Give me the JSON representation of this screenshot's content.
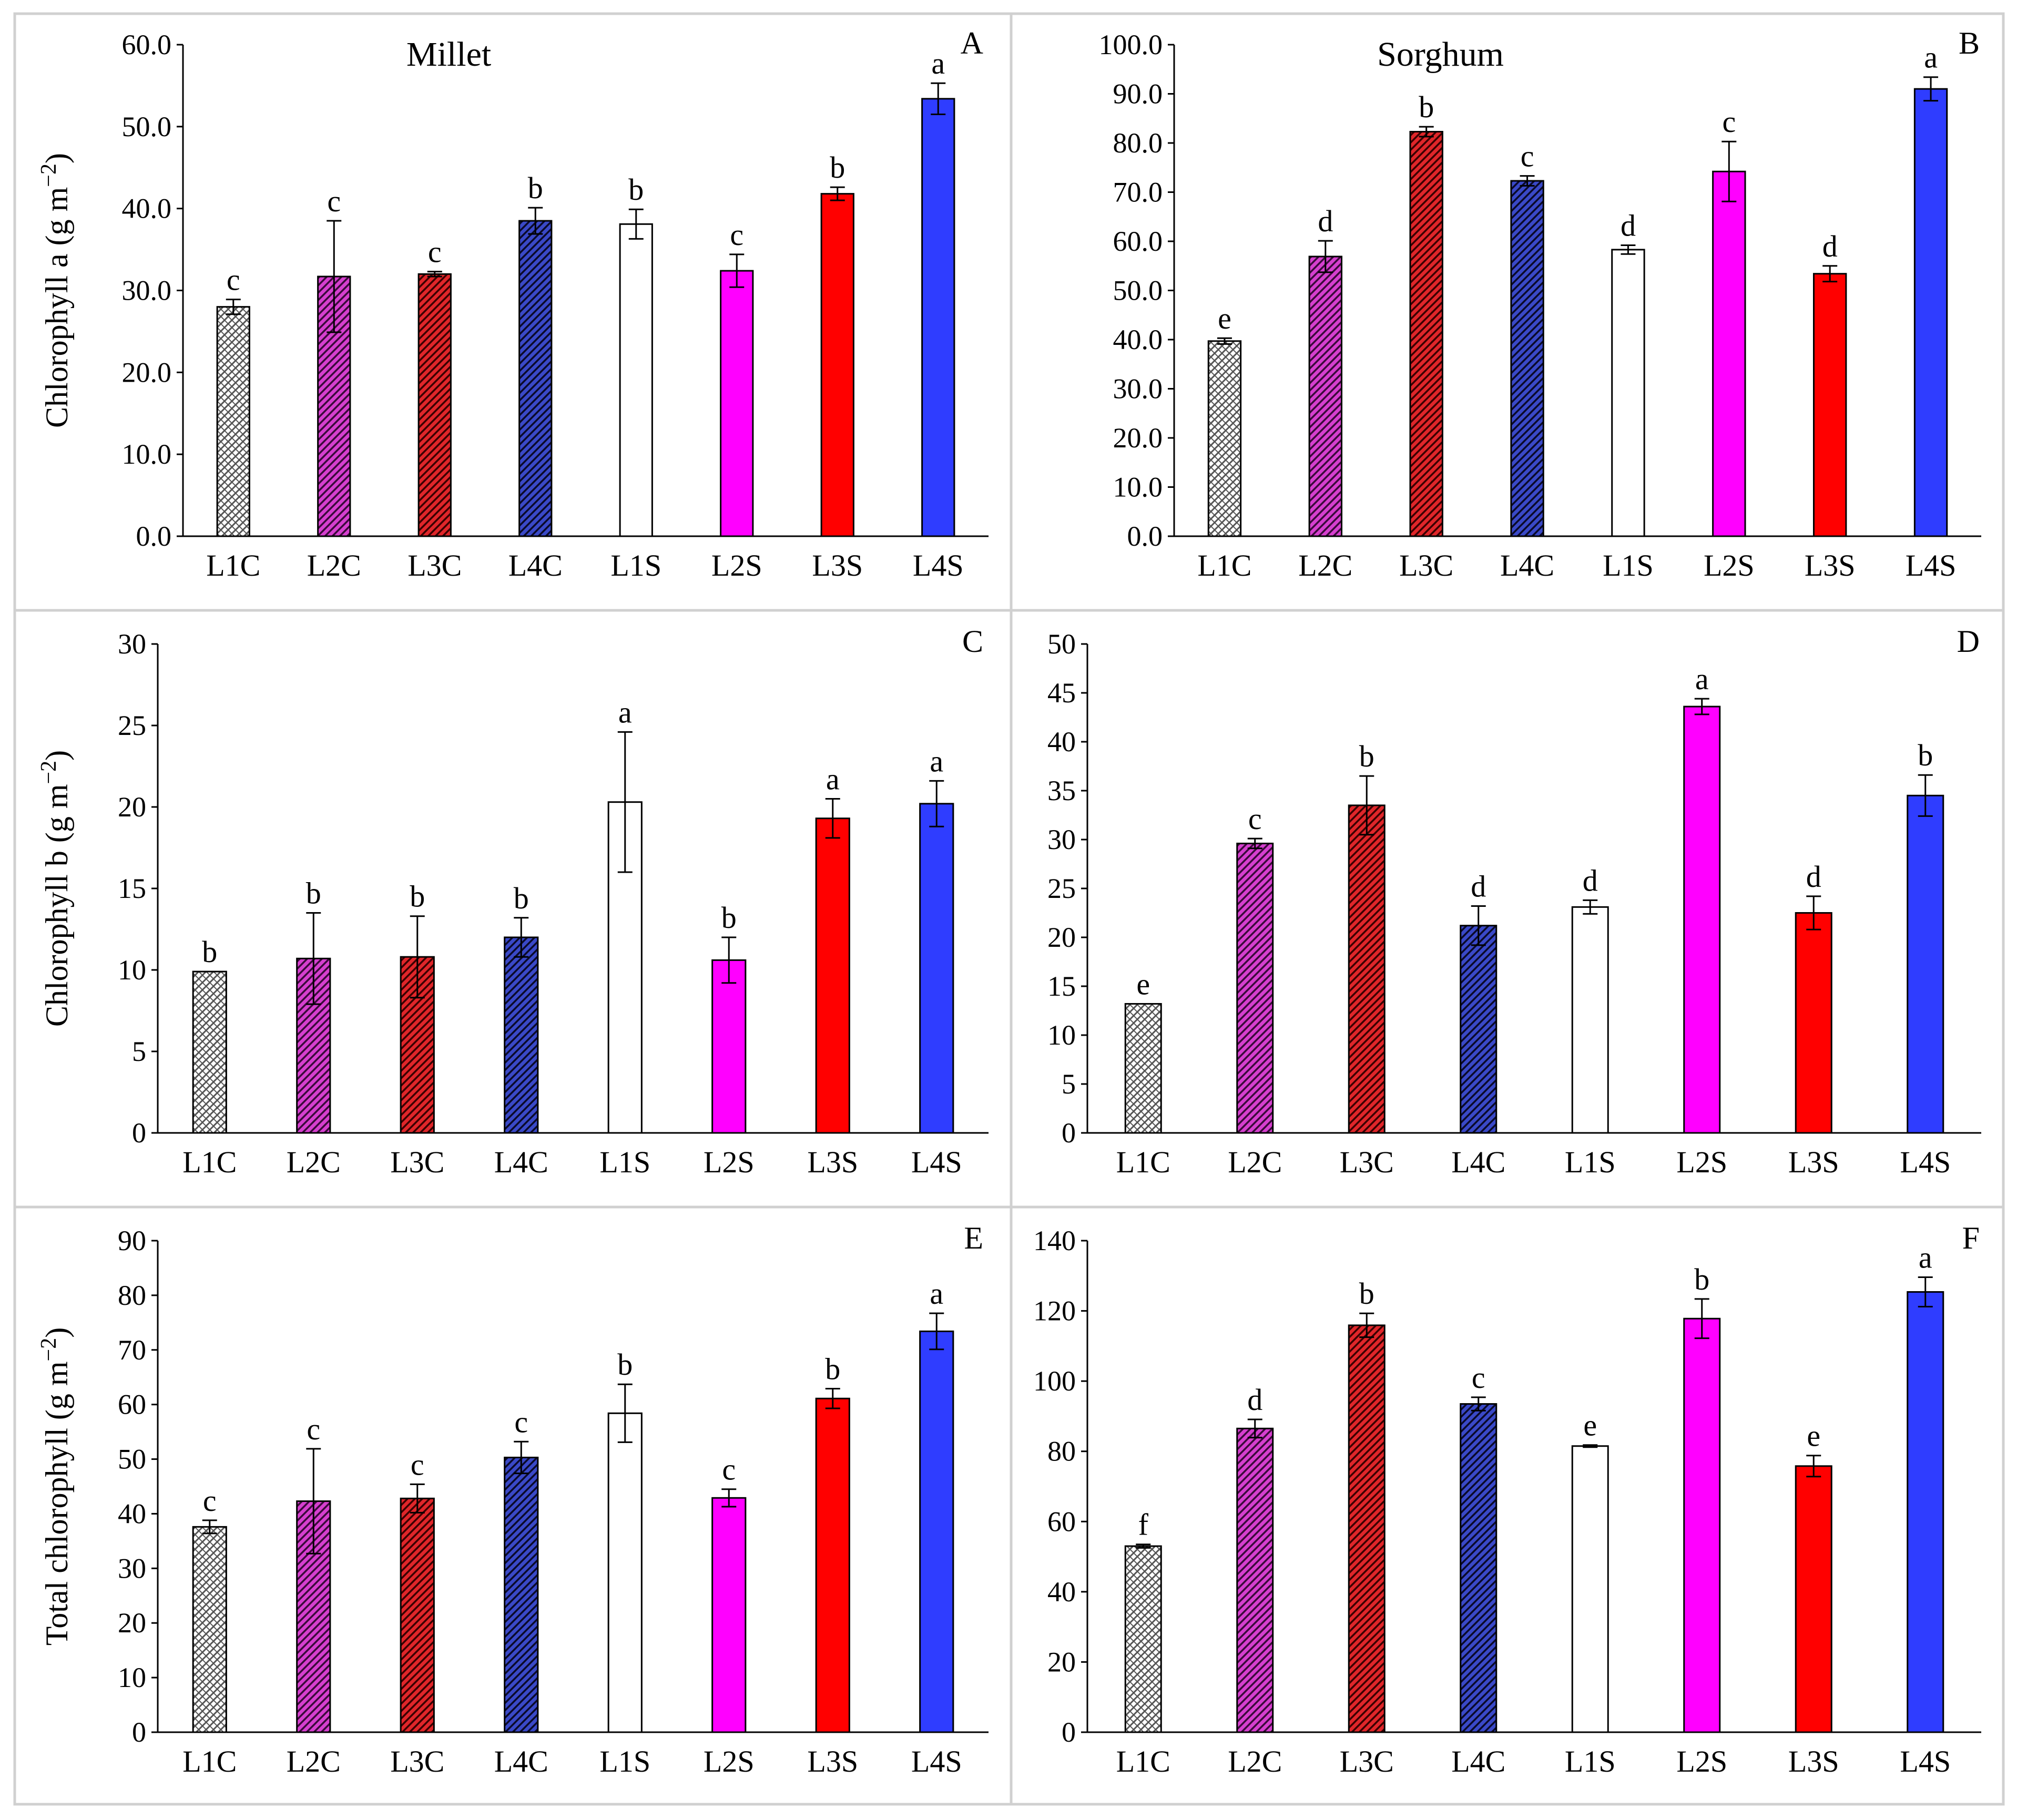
{
  "figure": {
    "categories": [
      "L1C",
      "L2C",
      "L3C",
      "L4C",
      "L1S",
      "L2S",
      "L3S",
      "L4S"
    ],
    "series_styles": [
      {
        "name": "L1C",
        "fill": "#ffffff",
        "hatch": "#555555",
        "pattern": "cross"
      },
      {
        "name": "L2C",
        "fill": "#d63fcf",
        "hatch": "#3a0a3a",
        "pattern": "diag"
      },
      {
        "name": "L3C",
        "fill": "#e0262a",
        "hatch": "#3a0000",
        "pattern": "diag"
      },
      {
        "name": "L4C",
        "fill": "#3a49c8",
        "hatch": "#0a0a2a",
        "pattern": "diag"
      },
      {
        "name": "L1S",
        "fill": "#ffffff",
        "hatch": "",
        "pattern": "none"
      },
      {
        "name": "L2S",
        "fill": "#ff00ff",
        "hatch": "",
        "pattern": "none"
      },
      {
        "name": "L3S",
        "fill": "#ff0000",
        "hatch": "",
        "pattern": "none"
      },
      {
        "name": "L4S",
        "fill": "#2f3dff",
        "hatch": "",
        "pattern": "none"
      }
    ]
  },
  "chart_data": [
    {
      "type": "bar",
      "panel": "A",
      "title": "Millet",
      "ylabel_main": "Chlorophyll a (g m",
      "ylabel_sup": "−2",
      "ylabel_end": ")",
      "categories": [
        "L1C",
        "L2C",
        "L3C",
        "L4C",
        "L1S",
        "L2S",
        "L3S",
        "L4S"
      ],
      "values": [
        28.0,
        31.7,
        32.0,
        38.5,
        38.1,
        32.4,
        41.8,
        53.4
      ],
      "errors": [
        0.9,
        6.8,
        0.3,
        1.6,
        1.8,
        2.0,
        0.8,
        1.9
      ],
      "letters": [
        "c",
        "c",
        "c",
        "b",
        "b",
        "c",
        "b",
        "a"
      ],
      "ylim": [
        0,
        60
      ],
      "ticks": [
        0,
        10,
        20,
        30,
        40,
        50,
        60
      ],
      "tick_labels": [
        "0.0",
        "10.0",
        "20.0",
        "30.0",
        "40.0",
        "50.0",
        "60.0"
      ]
    },
    {
      "type": "bar",
      "panel": "B",
      "title": "Sorghum",
      "ylabel_main": "",
      "ylabel_sup": "",
      "ylabel_end": "",
      "categories": [
        "L1C",
        "L2C",
        "L3C",
        "L4C",
        "L1S",
        "L2S",
        "L3S",
        "L4S"
      ],
      "values": [
        39.7,
        56.9,
        82.3,
        72.3,
        58.3,
        74.2,
        53.4,
        91.0
      ],
      "errors": [
        0.6,
        3.2,
        1.0,
        1.0,
        0.9,
        6.1,
        1.6,
        2.4
      ],
      "letters": [
        "e",
        "d",
        "b",
        "c",
        "d",
        "c",
        "d",
        "a"
      ],
      "ylim": [
        0,
        100
      ],
      "ticks": [
        0,
        10,
        20,
        30,
        40,
        50,
        60,
        70,
        80,
        90,
        100
      ],
      "tick_labels": [
        "0.0",
        "10.0",
        "20.0",
        "30.0",
        "40.0",
        "50.0",
        "60.0",
        "70.0",
        "80.0",
        "90.0",
        "100.0"
      ]
    },
    {
      "type": "bar",
      "panel": "C",
      "title": "",
      "ylabel_main": "Chlorophyll b (g m",
      "ylabel_sup": "−2",
      "ylabel_end": ")",
      "categories": [
        "L1C",
        "L2C",
        "L3C",
        "L4C",
        "L1S",
        "L2S",
        "L3S",
        "L4S"
      ],
      "values": [
        9.9,
        10.7,
        10.8,
        12.0,
        20.3,
        10.6,
        19.3,
        20.2
      ],
      "errors": [
        0.0,
        2.8,
        2.5,
        1.2,
        4.3,
        1.4,
        1.2,
        1.4
      ],
      "letters": [
        "b",
        "b",
        "b",
        "b",
        "a",
        "b",
        "a",
        "a"
      ],
      "ylim": [
        0,
        30
      ],
      "ticks": [
        0,
        5,
        10,
        15,
        20,
        25,
        30
      ],
      "tick_labels": [
        "0",
        "5",
        "10",
        "15",
        "20",
        "25",
        "30"
      ]
    },
    {
      "type": "bar",
      "panel": "D",
      "title": "",
      "ylabel_main": "",
      "ylabel_sup": "",
      "ylabel_end": "",
      "categories": [
        "L1C",
        "L2C",
        "L3C",
        "L4C",
        "L1S",
        "L2S",
        "L3S",
        "L4S"
      ],
      "values": [
        13.2,
        29.6,
        33.5,
        21.2,
        23.1,
        43.6,
        22.5,
        34.5
      ],
      "errors": [
        0.0,
        0.5,
        3.0,
        2.0,
        0.7,
        0.8,
        1.7,
        2.1
      ],
      "letters": [
        "e",
        "c",
        "b",
        "d",
        "d",
        "a",
        "d",
        "b"
      ],
      "ylim": [
        0,
        50
      ],
      "ticks": [
        0,
        5,
        10,
        15,
        20,
        25,
        30,
        35,
        40,
        45,
        50
      ],
      "tick_labels": [
        "0",
        "5",
        "10",
        "15",
        "20",
        "25",
        "30",
        "35",
        "40",
        "45",
        "50"
      ]
    },
    {
      "type": "bar",
      "panel": "E",
      "title": "",
      "ylabel_main": "Total chlorophyll (g m",
      "ylabel_sup": "−2",
      "ylabel_end": ")",
      "categories": [
        "L1C",
        "L2C",
        "L3C",
        "L4C",
        "L1S",
        "L2S",
        "L3S",
        "L4S"
      ],
      "values": [
        37.6,
        42.3,
        42.8,
        50.3,
        58.4,
        42.9,
        61.1,
        73.4
      ],
      "errors": [
        1.2,
        9.6,
        2.6,
        2.9,
        5.3,
        1.6,
        1.8,
        3.3
      ],
      "letters": [
        "c",
        "c",
        "c",
        "c",
        "b",
        "c",
        "b",
        "a"
      ],
      "ylim": [
        0,
        90
      ],
      "ticks": [
        0,
        10,
        20,
        30,
        40,
        50,
        60,
        70,
        80,
        90
      ],
      "tick_labels": [
        "0",
        "10",
        "20",
        "30",
        "40",
        "50",
        "60",
        "70",
        "80",
        "90"
      ]
    },
    {
      "type": "bar",
      "panel": "F",
      "title": "",
      "ylabel_main": "",
      "ylabel_sup": "",
      "ylabel_end": "",
      "categories": [
        "L1C",
        "L2C",
        "L3C",
        "L4C",
        "L1S",
        "L2S",
        "L3S",
        "L4S"
      ],
      "values": [
        53.0,
        86.5,
        115.9,
        93.5,
        81.5,
        117.8,
        75.8,
        125.4
      ],
      "errors": [
        0.5,
        2.6,
        3.4,
        1.9,
        0.3,
        5.6,
        3.0,
        4.2
      ],
      "letters": [
        "f",
        "d",
        "b",
        "c",
        "e",
        "b",
        "e",
        "a"
      ],
      "ylim": [
        0,
        140
      ],
      "ticks": [
        0,
        20,
        40,
        60,
        80,
        100,
        120,
        140
      ],
      "tick_labels": [
        "0",
        "20",
        "40",
        "60",
        "80",
        "100",
        "120",
        "140"
      ]
    }
  ]
}
